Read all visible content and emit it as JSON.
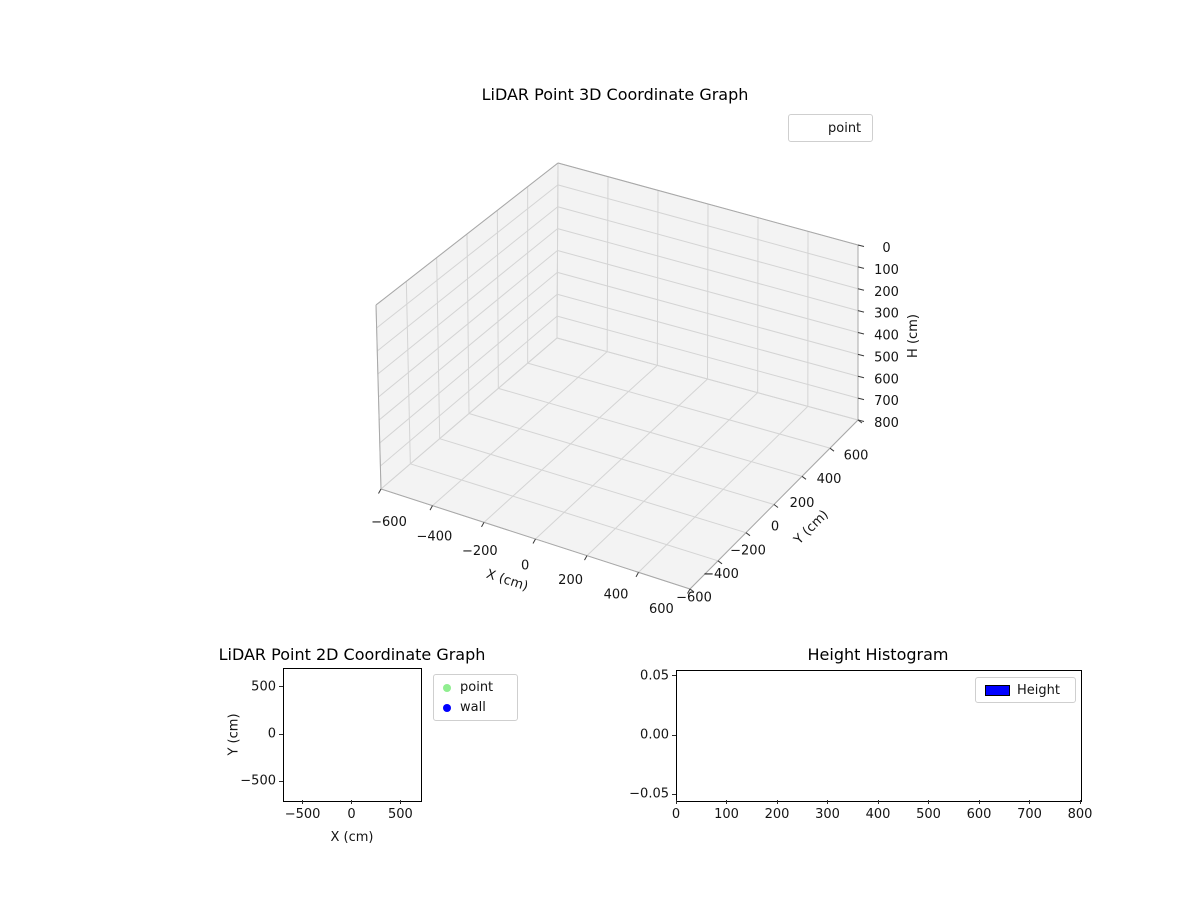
{
  "chart_data": [
    {
      "id": "lidar-3d",
      "type": "scatter",
      "projection": "3d",
      "title": "LiDAR Point 3D Coordinate Graph",
      "xlabel": "X (cm)",
      "ylabel": "Y (cm)",
      "zlabel": "H (cm)",
      "xlim": [
        -700,
        700
      ],
      "ylim": [
        -700,
        700
      ],
      "zlim": [
        0,
        800
      ],
      "z_axis_inverted": true,
      "xticks": [
        -600,
        -400,
        -200,
        0,
        200,
        400,
        600
      ],
      "yticks": [
        -600,
        -400,
        -200,
        0,
        200,
        400,
        600
      ],
      "zticks": [
        0,
        100,
        200,
        300,
        400,
        500,
        600,
        700,
        800
      ],
      "grid": true,
      "pane_color": "#f3f3f3",
      "grid_color": "#d4d4d4",
      "legend": {
        "position": "upper right",
        "entries": [
          "point"
        ]
      },
      "series": [
        {
          "name": "point",
          "points": []
        }
      ]
    },
    {
      "id": "lidar-2d",
      "type": "scatter",
      "title": "LiDAR Point 2D Coordinate Graph",
      "xlabel": "X (cm)",
      "ylabel": "Y (cm)",
      "xlim": [
        -700,
        700
      ],
      "ylim": [
        -700,
        700
      ],
      "xticks": [
        -500,
        0,
        500
      ],
      "yticks": [
        -500,
        0,
        500
      ],
      "grid": false,
      "legend": {
        "position": "outside upper right",
        "entries": [
          "point",
          "wall"
        ]
      },
      "series": [
        {
          "name": "point",
          "color": "#90ee90",
          "points": []
        },
        {
          "name": "wall",
          "color": "#0000ff",
          "points": []
        }
      ]
    },
    {
      "id": "height-histogram",
      "type": "bar",
      "title": "Height Histogram",
      "xlabel": "",
      "ylabel": "",
      "xlim": [
        0,
        800
      ],
      "ylim": [
        -0.055,
        0.055
      ],
      "xticks": [
        0,
        100,
        200,
        300,
        400,
        500,
        600,
        700,
        800
      ],
      "yticks": [
        -0.05,
        0,
        0.05
      ],
      "ytick_labels": [
        "−0.05",
        "0.00",
        "0.05"
      ],
      "grid": false,
      "legend": {
        "position": "upper right",
        "entries": [
          "Height"
        ]
      },
      "series": [
        {
          "name": "Height",
          "color": "#0000ff",
          "values": []
        }
      ]
    }
  ]
}
